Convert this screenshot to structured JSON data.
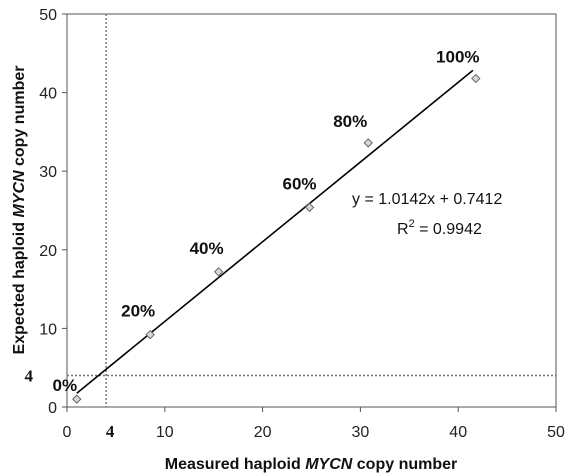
{
  "chart_data": {
    "type": "scatter",
    "xlabel": {
      "pre": "Measured haploid ",
      "italic": "MYCN",
      "post": " copy number"
    },
    "ylabel": {
      "pre": "Expected haploid ",
      "italic": "MYCN",
      "post": " copy number"
    },
    "xlim": [
      0,
      50
    ],
    "ylim": [
      0,
      50
    ],
    "xticks": [
      "0",
      "10",
      "20",
      "30",
      "40",
      "50"
    ],
    "yticks": [
      "0",
      "10",
      "20",
      "30",
      "40",
      "50"
    ],
    "threshold": {
      "x": 4,
      "y": 4,
      "label": "4"
    },
    "points": [
      {
        "x": 1.0,
        "y": 1.0,
        "label": "0%"
      },
      {
        "x": 8.5,
        "y": 9.2,
        "label": "20%"
      },
      {
        "x": 15.5,
        "y": 17.2,
        "label": "40%"
      },
      {
        "x": 24.8,
        "y": 25.4,
        "label": "60%"
      },
      {
        "x": 30.8,
        "y": 33.6,
        "label": "80%"
      },
      {
        "x": 41.8,
        "y": 41.8,
        "label": "100%"
      }
    ],
    "trendline": {
      "slope": 1.0142,
      "intercept": 0.7412,
      "x_range": [
        1.0,
        41.5
      ]
    },
    "equation": "y = 1.0142x + 0.7412",
    "r2_prefix": "R",
    "r2_sup": "2",
    "r2_value": " = 0.9942",
    "grid": false
  }
}
